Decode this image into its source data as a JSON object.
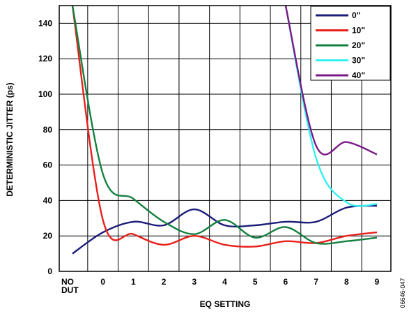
{
  "chart_data": {
    "type": "line",
    "xlabel": "EQ SETTING",
    "ylabel": "DETERMINISTIC JITTER (ps)",
    "categories": [
      "NO DUT",
      "0",
      "1",
      "2",
      "3",
      "4",
      "5",
      "6",
      "7",
      "8",
      "9"
    ],
    "ylim": [
      0,
      150
    ],
    "yticks": [
      0,
      20,
      40,
      60,
      80,
      100,
      120,
      140
    ],
    "grid": true,
    "legend_position": "top-right",
    "series": [
      {
        "name": "0\"",
        "color": "#1c1c7a",
        "values": [
          10,
          22,
          28,
          26,
          35,
          26,
          26,
          28,
          28,
          36,
          37
        ]
      },
      {
        "name": "10\"",
        "color": "#e8201b",
        "values": [
          150,
          29,
          21,
          15,
          20,
          15,
          14,
          17,
          16,
          20,
          22
        ]
      },
      {
        "name": "20\"",
        "color": "#138040",
        "values": [
          150,
          55,
          41,
          28,
          21,
          29,
          19,
          25,
          16,
          17,
          19
        ]
      },
      {
        "name": "30\"",
        "color": "#33f0f0",
        "values": [
          null,
          null,
          null,
          null,
          null,
          null,
          null,
          150,
          64,
          39,
          38
        ]
      },
      {
        "name": "40\"",
        "color": "#7b1a86",
        "values": [
          null,
          null,
          null,
          null,
          null,
          null,
          null,
          150,
          71,
          73,
          66
        ]
      }
    ],
    "figure_id": "06646-047"
  }
}
